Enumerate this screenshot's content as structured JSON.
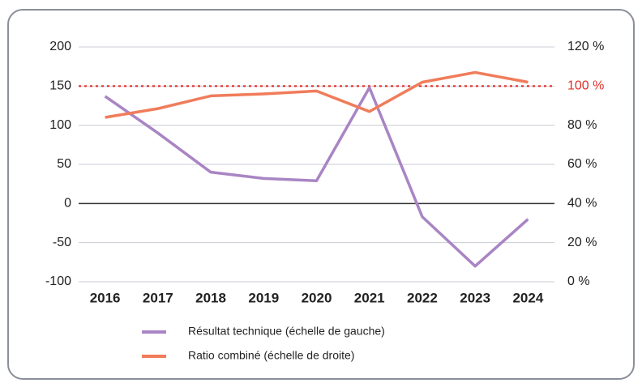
{
  "chart_data": {
    "type": "line",
    "categories": [
      "2016",
      "2017",
      "2018",
      "2019",
      "2020",
      "2021",
      "2022",
      "2023",
      "2024"
    ],
    "series": [
      {
        "name": "Résultat technique (échelle de gauche)",
        "color": "#a985c4",
        "values": [
          137,
          90,
          40,
          32,
          29,
          148,
          -17,
          -80,
          -20
        ]
      },
      {
        "name": "Ratio combiné (échelle de droite)",
        "color": "#f07c5a",
        "axis": "y2",
        "values": [
          84,
          88.5,
          95,
          96,
          97.5,
          87,
          102,
          107,
          102
        ]
      }
    ],
    "ylim": [
      -100,
      200
    ],
    "yticks": [
      -100,
      -50,
      0,
      50,
      100,
      150,
      200
    ],
    "y2lim": [
      0,
      120
    ],
    "y2ticks": [
      {
        "value": 0,
        "label": "0 %"
      },
      {
        "value": 20,
        "label": "20 %"
      },
      {
        "value": 40,
        "label": "40 %"
      },
      {
        "value": 60,
        "label": "60 %"
      },
      {
        "value": 80,
        "label": "80 %"
      },
      {
        "value": 100,
        "label": "100 %"
      },
      {
        "value": 120,
        "label": "120 %"
      }
    ],
    "reference_line": {
      "axis": "y2",
      "value": 100,
      "color": "#e0302a"
    },
    "grid": true
  }
}
